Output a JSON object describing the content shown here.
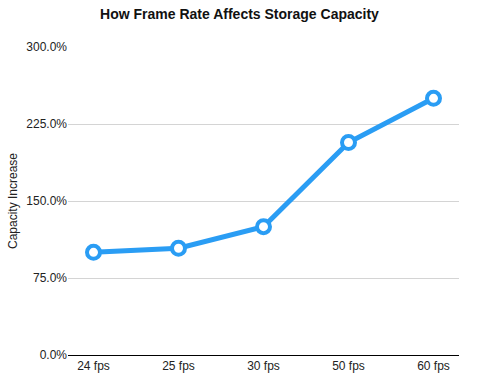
{
  "chart_data": {
    "type": "line",
    "title": "How Frame Rate Affects Storage Capacity",
    "y_label": "Capacity Increase",
    "categories": [
      "24 fps",
      "25 fps",
      "30 fps",
      "50 fps",
      "60 fps"
    ],
    "values": [
      100,
      104,
      125,
      207,
      250
    ],
    "color": "#2a9df4",
    "marker": "circle",
    "ylim": [
      0,
      300
    ],
    "yticks": [
      {
        "value": 0,
        "label": "0.0%"
      },
      {
        "value": 75,
        "label": "75.0%"
      },
      {
        "value": 150,
        "label": "150.0%"
      },
      {
        "value": 225,
        "label": "225.0%"
      },
      {
        "value": 300,
        "label": "300.0%"
      }
    ],
    "grid": true
  }
}
